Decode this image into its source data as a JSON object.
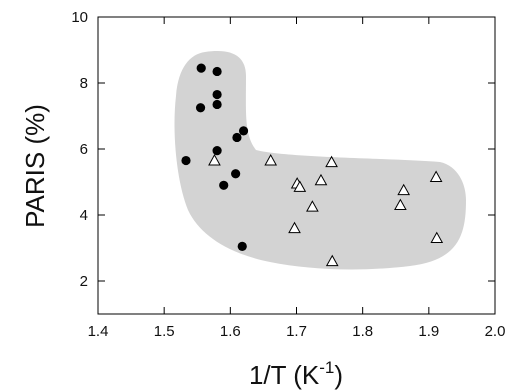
{
  "chart_data": {
    "type": "scatter",
    "title": "",
    "xlabel": "1/T (K",
    "xlabel_sup": "-1",
    "xlabel_close": ")",
    "ylabel": "PARIS (%)",
    "xlim": [
      1.4,
      2.0
    ],
    "ylim": [
      1,
      10
    ],
    "xticks": [
      1.4,
      1.5,
      1.6,
      1.7,
      1.8,
      1.9,
      2.0
    ],
    "xtick_labels": [
      "1.4",
      "1.5",
      "1.6",
      "1.7",
      "1.8",
      "1.9",
      "2.0"
    ],
    "yticks": [
      2,
      4,
      6,
      8,
      10
    ],
    "ytick_labels": [
      "2",
      "4",
      "6",
      "8",
      "10"
    ],
    "grid": false,
    "colors": {
      "region": "#d3d3d3",
      "marker": "#000000"
    },
    "series": [
      {
        "marker": "filled-circle",
        "points": [
          [
            1.556,
            8.45
          ],
          [
            1.58,
            8.35
          ],
          [
            1.58,
            7.65
          ],
          [
            1.555,
            7.25
          ],
          [
            1.58,
            7.35
          ],
          [
            1.62,
            6.55
          ],
          [
            1.61,
            6.35
          ],
          [
            1.58,
            5.95
          ],
          [
            1.533,
            5.65
          ],
          [
            1.608,
            5.25
          ],
          [
            1.59,
            4.9
          ],
          [
            1.618,
            3.05
          ]
        ]
      },
      {
        "marker": "open-triangle",
        "points": [
          [
            1.576,
            5.65
          ],
          [
            1.661,
            5.65
          ],
          [
            1.753,
            5.6
          ],
          [
            1.737,
            5.05
          ],
          [
            1.701,
            4.95
          ],
          [
            1.705,
            4.85
          ],
          [
            1.724,
            4.25
          ],
          [
            1.697,
            3.6
          ],
          [
            1.754,
            2.6
          ],
          [
            1.862,
            4.75
          ],
          [
            1.857,
            4.3
          ],
          [
            1.911,
            5.15
          ],
          [
            1.912,
            3.3
          ]
        ]
      }
    ]
  }
}
